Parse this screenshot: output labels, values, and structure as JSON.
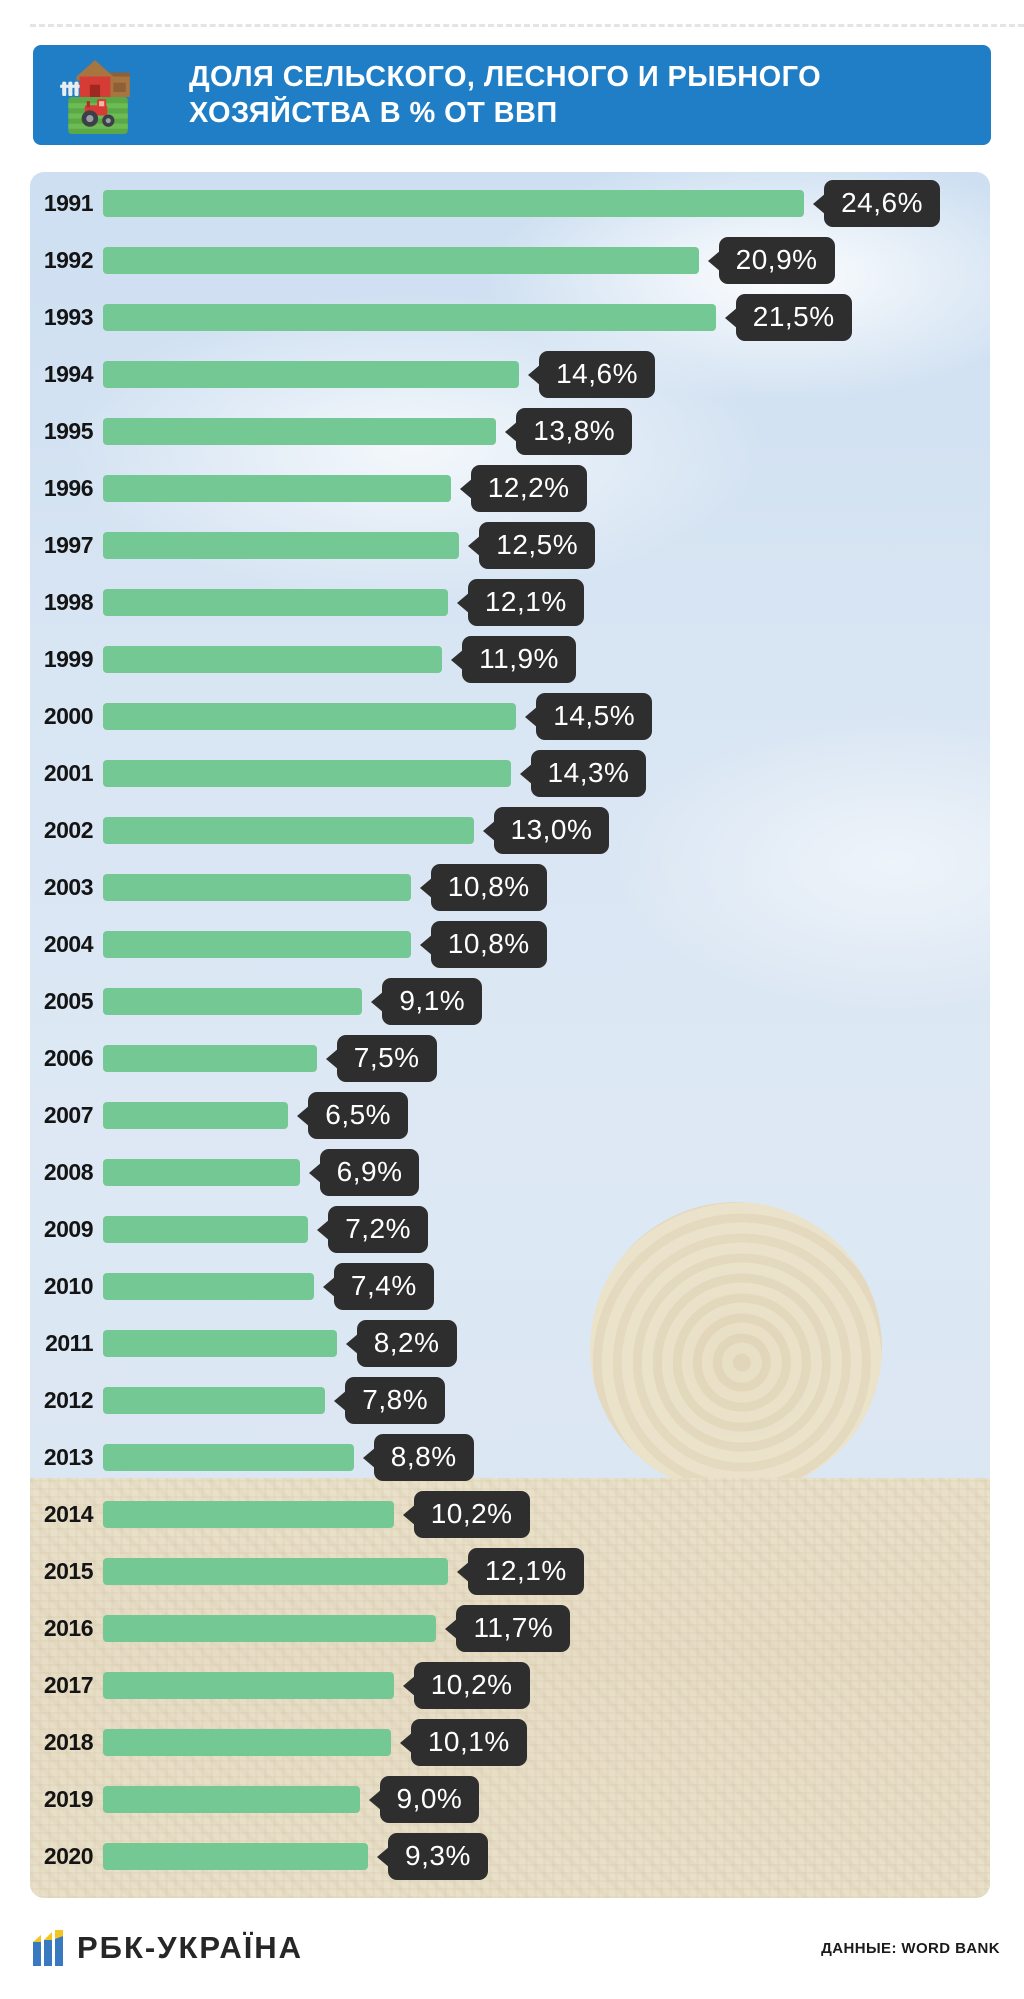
{
  "header": {
    "title_line1": "ДОЛЯ СЕЛЬСКОГО, ЛЕСНОГО И РЫБНОГО",
    "title_line2": "ХОЗЯЙСТВА В % ОТ ВВП",
    "bg_color": "#1f7ec6"
  },
  "chart_data": {
    "type": "bar",
    "orientation": "horizontal",
    "title": "ДОЛЯ СЕЛЬСКОГО, ЛЕСНОГО И РЫБНОГО ХОЗЯЙСТВА В % ОТ ВВП",
    "categories": [
      "1991",
      "1992",
      "1993",
      "1994",
      "1995",
      "1996",
      "1997",
      "1998",
      "1999",
      "2000",
      "2001",
      "2002",
      "2003",
      "2004",
      "2005",
      "2006",
      "2007",
      "2008",
      "2009",
      "2010",
      "2011",
      "2012",
      "2013",
      "2014",
      "2015",
      "2016",
      "2017",
      "2018",
      "2019",
      "2020"
    ],
    "values": [
      24.6,
      20.9,
      21.5,
      14.6,
      13.8,
      12.2,
      12.5,
      12.1,
      11.9,
      14.5,
      14.3,
      13.0,
      10.8,
      10.8,
      9.1,
      7.5,
      6.5,
      6.9,
      7.2,
      7.4,
      8.2,
      7.8,
      8.8,
      10.2,
      12.1,
      11.7,
      10.2,
      10.1,
      9.0,
      9.3
    ],
    "labels": [
      "24,6%",
      "20,9%",
      "21,5%",
      "14,6%",
      "13,8%",
      "12,2%",
      "12,5%",
      "12,1%",
      "11,9%",
      "14,5%",
      "14,3%",
      "13,0%",
      "10,8%",
      "10,8%",
      "9,1%",
      "7,5%",
      "6,5%",
      "6,9%",
      "7,2%",
      "7,4%",
      "8,2%",
      "7,8%",
      "8,8%",
      "10,2%",
      "12,1%",
      "11,7%",
      "10,2%",
      "10,1%",
      "9,0%",
      "9,3%"
    ],
    "xlim": [
      0,
      26
    ],
    "grid": false,
    "legend": "none",
    "bar_color": "#74c893",
    "label_bg_color": "#2e2e2e",
    "label_text_color": "#ffffff"
  },
  "footer": {
    "brand": "РБК-УКРАЇНА",
    "source": "ДАННЫЕ: WORD BANK"
  }
}
